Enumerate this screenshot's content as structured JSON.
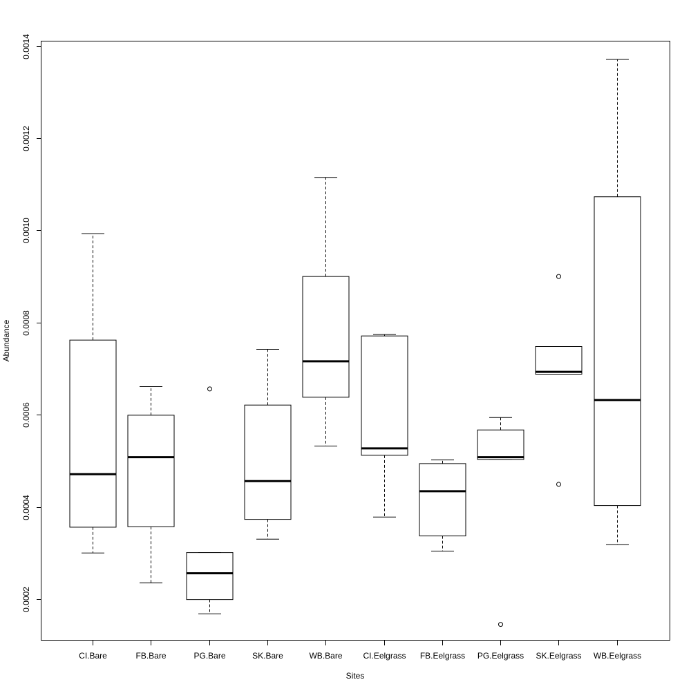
{
  "chart_data": {
    "type": "boxplot",
    "title": "",
    "xlabel": "Sites",
    "ylabel": "Abundance",
    "ylim": [
      0.00011,
      0.00141
    ],
    "yticks": [
      0.0002,
      0.0004,
      0.0006,
      0.0008,
      0.001,
      0.0012,
      0.0014
    ],
    "yticklabels": [
      "0.0002",
      "0.0004",
      "0.0006",
      "0.0008",
      "0.0010",
      "0.0012",
      "0.0014"
    ],
    "grid": false,
    "categories": [
      "CI.Bare",
      "FB.Bare",
      "PG.Bare",
      "SK.Bare",
      "WB.Bare",
      "CI.Eelgrass",
      "FB.Eelgrass",
      "PG.Eelgrass",
      "SK.Eelgrass",
      "WB.Eelgrass"
    ],
    "boxes": [
      {
        "whisker_low": 0.0003,
        "q1": 0.000356,
        "median": 0.000471,
        "q3": 0.000762,
        "whisker_high": 0.000993,
        "outliers": []
      },
      {
        "whisker_low": 0.000235,
        "q1": 0.000357,
        "median": 0.000508,
        "q3": 0.000599,
        "whisker_high": 0.000661,
        "outliers": []
      },
      {
        "whisker_low": 0.000168,
        "q1": 0.000199,
        "median": 0.000256,
        "q3": 0.000301,
        "whisker_high": 0.000301,
        "outliers": [
          0.000656
        ]
      },
      {
        "whisker_low": 0.00033,
        "q1": 0.000373,
        "median": 0.000456,
        "q3": 0.000621,
        "whisker_high": 0.000742,
        "outliers": []
      },
      {
        "whisker_low": 0.000532,
        "q1": 0.000638,
        "median": 0.000716,
        "q3": 0.0009,
        "whisker_high": 0.001115,
        "outliers": []
      },
      {
        "whisker_low": 0.000378,
        "q1": 0.000512,
        "median": 0.000527,
        "q3": 0.000771,
        "whisker_high": 0.000774,
        "outliers": []
      },
      {
        "whisker_low": 0.000304,
        "q1": 0.000337,
        "median": 0.000434,
        "q3": 0.000494,
        "whisker_high": 0.000502,
        "outliers": []
      },
      {
        "whisker_low": 0.000503,
        "q1": 0.000503,
        "median": 0.000508,
        "q3": 0.000567,
        "whisker_high": 0.000594,
        "outliers": [
          0.000145
        ]
      },
      {
        "whisker_low": 0.000688,
        "q1": 0.000688,
        "median": 0.000693,
        "q3": 0.000748,
        "whisker_high": 0.000748,
        "outliers": [
          0.0009,
          0.000449
        ]
      },
      {
        "whisker_low": 0.000318,
        "q1": 0.000403,
        "median": 0.000632,
        "q3": 0.001073,
        "whisker_high": 0.001371,
        "outliers": []
      }
    ]
  }
}
